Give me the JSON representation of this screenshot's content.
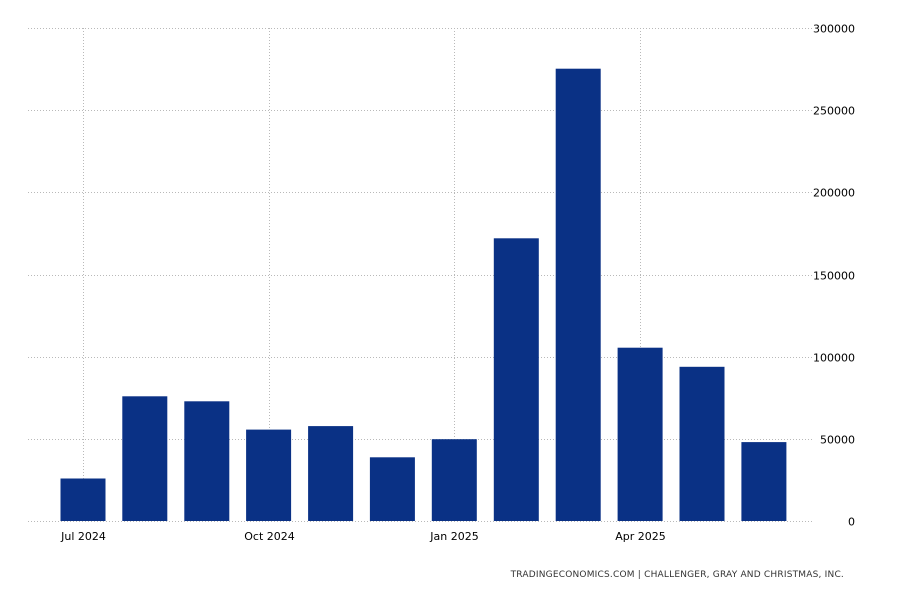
{
  "chart_data": {
    "type": "bar",
    "categories": [
      "2024-07",
      "2024-08",
      "2024-09",
      "2024-10",
      "2024-11",
      "2024-12",
      "2025-01",
      "2025-02",
      "2025-03",
      "2025-04",
      "2025-05",
      "2025-06"
    ],
    "values": [
      25885,
      75891,
      72821,
      55597,
      57727,
      38792,
      49795,
      172017,
      275240,
      105441,
      93816,
      47999
    ],
    "x_tick_labels": [
      {
        "label": "Jul 2024",
        "category": "2024-07"
      },
      {
        "label": "Oct 2024",
        "category": "2024-10"
      },
      {
        "label": "Jan 2025",
        "category": "2025-01"
      },
      {
        "label": "Apr 2025",
        "category": "2025-04"
      }
    ],
    "y_tick_labels": [
      "0",
      "50000",
      "100000",
      "150000",
      "200000",
      "250000",
      "300000"
    ],
    "y_ticks": [
      0,
      50000,
      100000,
      150000,
      200000,
      250000,
      300000
    ],
    "ylim": [
      0,
      300000
    ],
    "yaxis_position": "right",
    "grid": true,
    "legend": "none",
    "bar_color": "#0a3185",
    "grid_color": "#b9b9b9"
  },
  "source_text": "TRADINGECONOMICS.COM | CHALLENGER, GRAY AND CHRISTMAS, INC."
}
